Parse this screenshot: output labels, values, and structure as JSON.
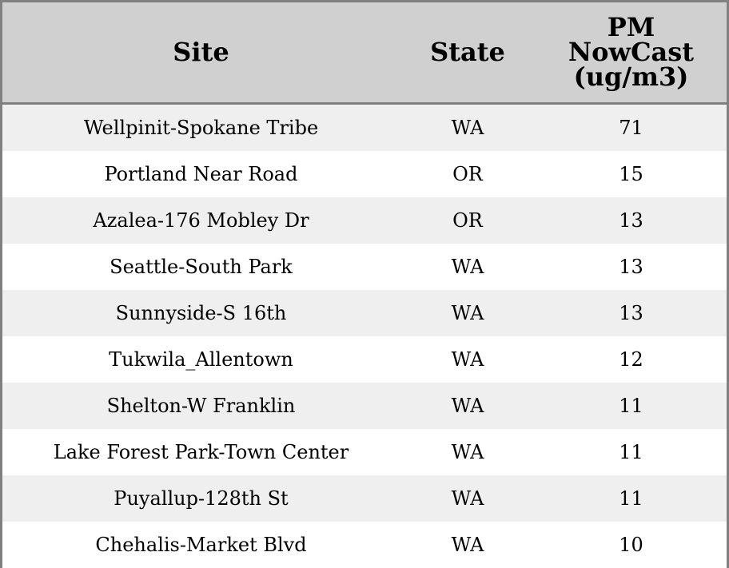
{
  "chart_data": {
    "type": "table",
    "columns": [
      "Site",
      "State",
      "PM NowCast (ug/m3)"
    ],
    "header_lines": [
      [
        "Site"
      ],
      [
        "State"
      ],
      [
        "PM",
        "NowCast",
        "(ug/m3)"
      ]
    ],
    "rows": [
      [
        "Wellpinit-Spokane Tribe",
        "WA",
        "71"
      ],
      [
        "Portland Near Road",
        "OR",
        "15"
      ],
      [
        "Azalea-176 Mobley Dr",
        "OR",
        "13"
      ],
      [
        "Seattle-South Park",
        "WA",
        "13"
      ],
      [
        "Sunnyside-S 16th",
        "WA",
        "13"
      ],
      [
        "Tukwila_Allentown",
        "WA",
        "12"
      ],
      [
        "Shelton-W Franklin",
        "WA",
        "11"
      ],
      [
        "Lake Forest Park-Town Center",
        "WA",
        "11"
      ],
      [
        "Puyallup-128th St",
        "WA",
        "11"
      ],
      [
        "Chehalis-Market Blvd",
        "WA",
        "10"
      ]
    ],
    "colors": {
      "header_bg": "#d0d0d0",
      "stripe_bg": "#efefef",
      "border": "#808080"
    }
  }
}
